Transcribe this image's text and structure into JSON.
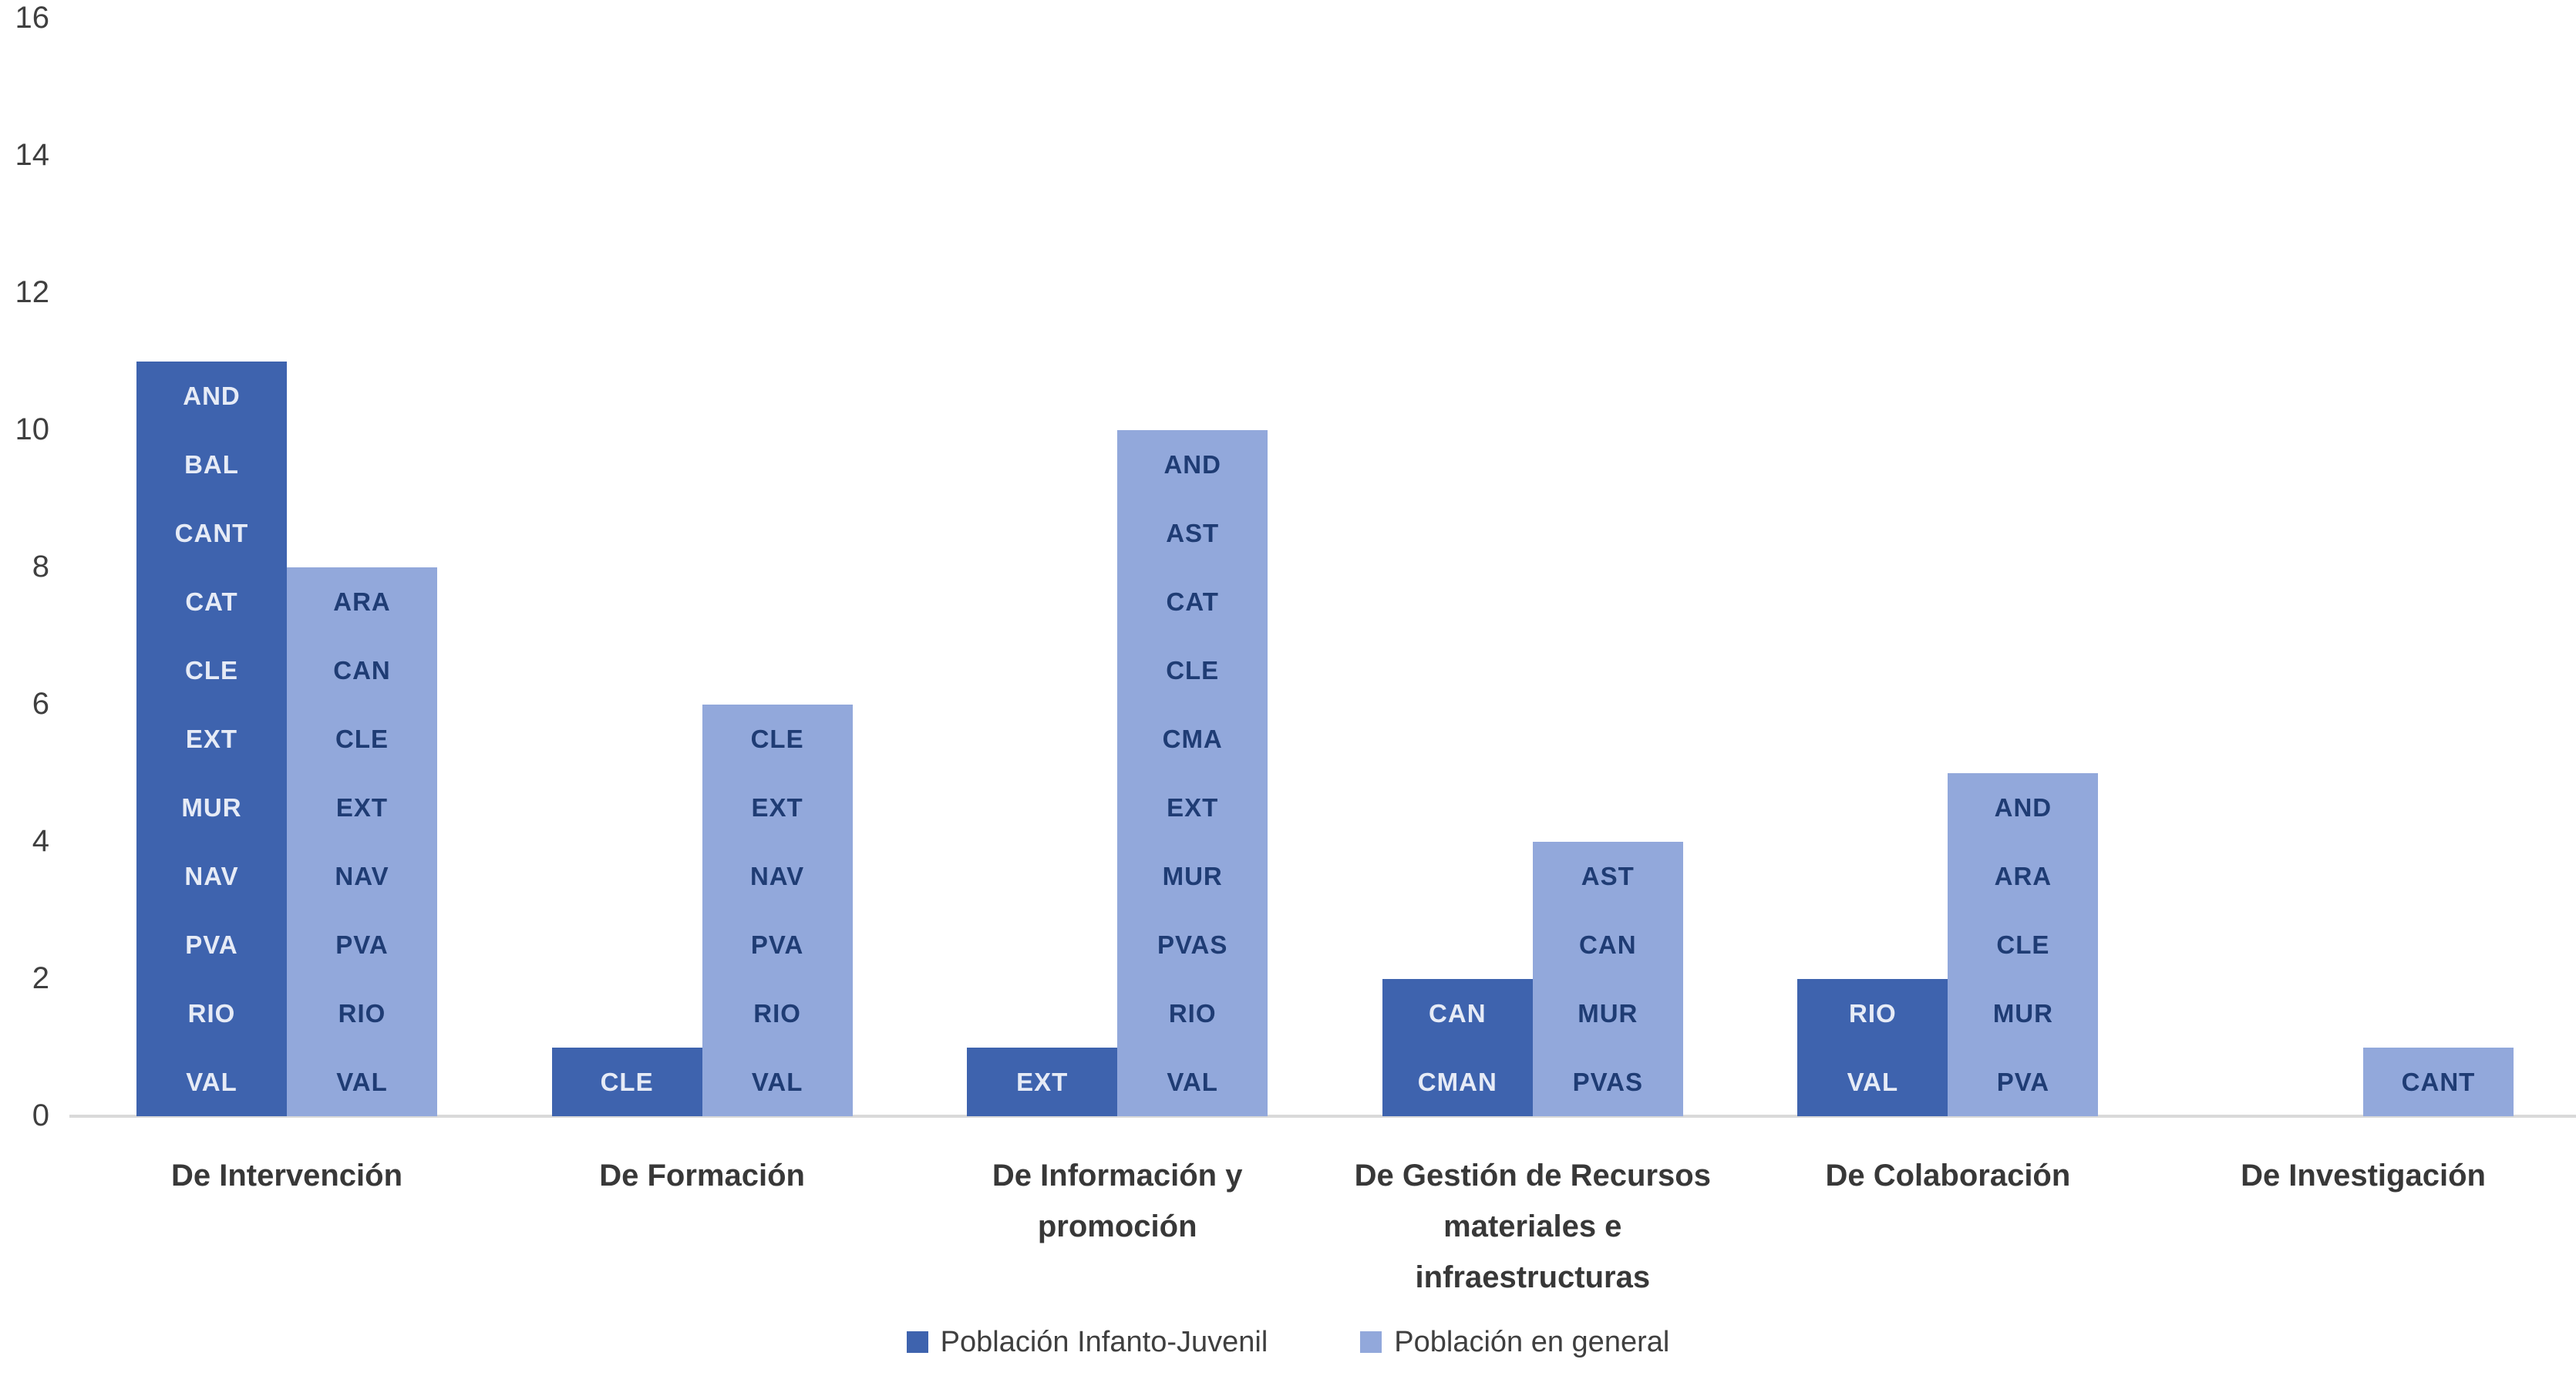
{
  "chart_data": {
    "type": "bar",
    "title": "",
    "xlabel": "",
    "ylabel": "",
    "categories": [
      "De Intervención",
      "De Formación",
      "De Información y promoción",
      "De Gestión de Recursos materiales e infraestructuras",
      "De Colaboración",
      "De Investigación"
    ],
    "series": [
      {
        "key": "infanto-juvenil",
        "name": "Población Infanto-Juvenil",
        "color": "#3E63AE",
        "label_color": "#E6EBF6",
        "values": [
          11,
          1,
          1,
          2,
          2,
          0
        ],
        "bar_labels": [
          [
            "AND",
            "BAL",
            "CANT",
            "CAT",
            "CLE",
            "EXT",
            "MUR",
            "NAV",
            "PVA",
            "RIO",
            "VAL"
          ],
          [
            "CLE"
          ],
          [
            "EXT"
          ],
          [
            "CAN",
            "CMAN"
          ],
          [
            "RIO",
            "VAL"
          ],
          []
        ]
      },
      {
        "key": "general",
        "name": "Población en general",
        "color": "#92A8DB",
        "label_color": "#1F3C74",
        "values": [
          8,
          6,
          10,
          4,
          5,
          1
        ],
        "bar_labels": [
          [
            "ARA",
            "CAN",
            "CLE",
            "EXT",
            "NAV",
            "PVA",
            "RIO",
            "VAL"
          ],
          [
            "CLE",
            "EXT",
            "NAV",
            "PVA",
            "RIO",
            "VAL"
          ],
          [
            "AND",
            "AST",
            "CAT",
            "CLE",
            "CMA",
            "EXT",
            "MUR",
            "PVAS",
            "RIO",
            "VAL"
          ],
          [
            "AST",
            "CAN",
            "MUR",
            "PVAS"
          ],
          [
            "AND",
            "ARA",
            "CLE",
            "MUR",
            "PVA"
          ],
          [
            "CANT"
          ]
        ]
      }
    ],
    "yticks": [
      0,
      2,
      4,
      6,
      8,
      10,
      12,
      14,
      16
    ],
    "ylim": [
      0,
      16
    ],
    "ytick_step": 2,
    "grid": false,
    "legend_position": "bottom",
    "axis_color": "#D9D9D9",
    "tick_text_color": "#3F3F3F"
  }
}
